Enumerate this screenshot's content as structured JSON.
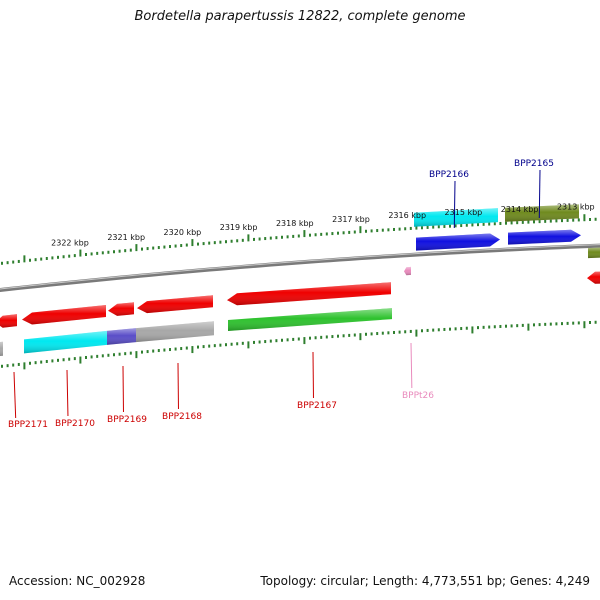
{
  "title": "Bordetella parapertussis 12822, complete genome",
  "footer": {
    "accession": "Accession: NC_002928",
    "summary": "Topology: circular; Length: 4,773,551 bp; Genes: 4,249"
  },
  "colors": {
    "backbone": "#7a7a7a",
    "tick": "#2f7f2f",
    "label_red": "#cc0000",
    "label_blue": "#00008b",
    "label_pink": "#e98bbd",
    "red": "#ef0000",
    "cyan": "#00e8f0",
    "blue": "#1010e0",
    "olive": "#6f8a1e",
    "green": "#2ec22e",
    "gray": "#a8a8a8",
    "purple": "#5a4ec8"
  },
  "ruler_labels": [
    "2322 kbp",
    "2321 kbp",
    "2320 kbp",
    "2319 kbp",
    "2318 kbp",
    "2317 kbp",
    "2316 kbp",
    "2315 kbp",
    "2314 kbp",
    "2313 kbp"
  ],
  "gene_labels": [
    {
      "name": "BPP2166",
      "color": "blue"
    },
    {
      "name": "BPP2165",
      "color": "blue"
    },
    {
      "name": "BPP2171",
      "color": "red"
    },
    {
      "name": "BPP2170",
      "color": "red"
    },
    {
      "name": "BPP2169",
      "color": "red"
    },
    {
      "name": "BPP2168",
      "color": "red"
    },
    {
      "name": "BPP2167",
      "color": "red"
    },
    {
      "name": "BPPt26",
      "color": "pink"
    }
  ]
}
